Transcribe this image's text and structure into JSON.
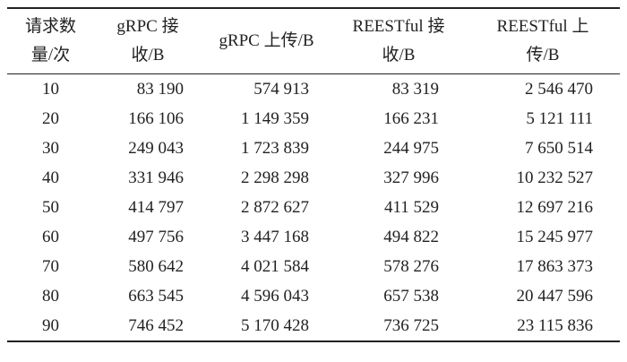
{
  "table": {
    "header": [
      [
        "请求数",
        "量/次"
      ],
      [
        "gRPC 接",
        "收/B"
      ],
      [
        "gRPC 上传/B"
      ],
      [
        "REESTful 接",
        "收/B"
      ],
      [
        "REESTful 上",
        "传/B"
      ]
    ],
    "rows": [
      [
        "10",
        "83 190",
        "574 913",
        "83 319",
        "2 546 470"
      ],
      [
        "20",
        "166 106",
        "1 149 359",
        "166 231",
        "5 121 111"
      ],
      [
        "30",
        "249 043",
        "1 723 839",
        "244 975",
        "7 650 514"
      ],
      [
        "40",
        "331 946",
        "2 298 298",
        "327 996",
        "10 232 527"
      ],
      [
        "50",
        "414 797",
        "2 872 627",
        "411 529",
        "12 697 216"
      ],
      [
        "60",
        "497 756",
        "3 447 168",
        "494 822",
        "15 245 977"
      ],
      [
        "70",
        "580 642",
        "4 021 584",
        "578 276",
        "17 863 373"
      ],
      [
        "80",
        "663 545",
        "4 596 043",
        "657 538",
        "20 447 596"
      ],
      [
        "90",
        "746 452",
        "5 170 428",
        "736 725",
        "23 115 836"
      ]
    ]
  }
}
